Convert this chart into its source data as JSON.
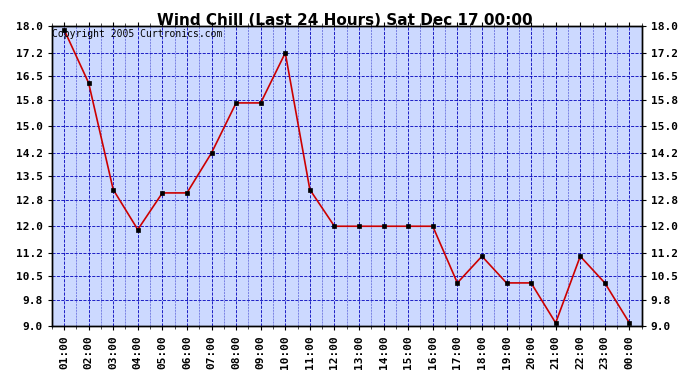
{
  "title": "Wind Chill (Last 24 Hours) Sat Dec 17 00:00",
  "copyright": "Copyright 2005 Curtronics.com",
  "x_labels": [
    "01:00",
    "02:00",
    "03:00",
    "04:00",
    "05:00",
    "06:00",
    "07:00",
    "08:00",
    "09:00",
    "10:00",
    "11:00",
    "12:00",
    "13:00",
    "14:00",
    "15:00",
    "16:00",
    "17:00",
    "18:00",
    "19:00",
    "20:00",
    "21:00",
    "22:00",
    "23:00",
    "00:00"
  ],
  "y_values": [
    17.9,
    16.3,
    13.1,
    11.9,
    13.0,
    13.0,
    14.2,
    15.7,
    15.7,
    17.2,
    13.1,
    12.0,
    12.0,
    12.0,
    12.0,
    12.0,
    10.3,
    11.1,
    10.3,
    10.3,
    9.1,
    11.1,
    10.3,
    9.1
  ],
  "ylim_min": 9.0,
  "ylim_max": 18.0,
  "yticks": [
    9.0,
    9.8,
    10.5,
    11.2,
    12.0,
    12.8,
    13.5,
    14.2,
    15.0,
    15.8,
    16.5,
    17.2,
    18.0
  ],
  "ytick_labels": [
    "9.0",
    "9.8",
    "10.5",
    "11.2",
    "12.0",
    "12.8",
    "13.5",
    "14.2",
    "15.0",
    "15.8",
    "16.5",
    "17.2",
    "18.0"
  ],
  "line_color": "#cc0000",
  "marker_color": "#000000",
  "bg_color": "#ccd9ff",
  "outer_bg": "#ffffff",
  "grid_color": "#0000bb",
  "title_color": "#000000",
  "border_color": "#000000",
  "copyright_color": "#000000",
  "title_fontsize": 11,
  "tick_fontsize": 8,
  "copyright_fontsize": 7
}
